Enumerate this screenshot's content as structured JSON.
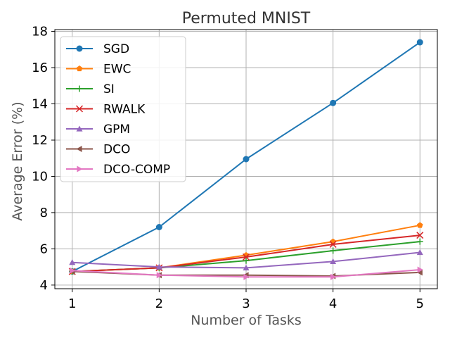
{
  "chart_data": {
    "type": "line",
    "title": "Permuted MNIST",
    "xlabel": "Number of Tasks",
    "ylabel": "Average Error (%)",
    "x": [
      1,
      2,
      3,
      4,
      5
    ],
    "xticks": [
      "1",
      "2",
      "3",
      "4",
      "5"
    ],
    "yticks": [
      "4",
      "6",
      "8",
      "10",
      "12",
      "14",
      "16",
      "18"
    ],
    "ylim": [
      3.8,
      18.1
    ],
    "xlim": [
      0.8,
      5.2
    ],
    "grid": true,
    "legend_position": "top-left",
    "series": [
      {
        "name": "SGD",
        "color": "#1f77b4",
        "marker": "circle",
        "values": [
          4.75,
          7.2,
          10.95,
          14.05,
          17.4
        ]
      },
      {
        "name": "EWC",
        "color": "#ff7f0e",
        "marker": "pentagon",
        "values": [
          4.75,
          4.95,
          5.65,
          6.4,
          7.3
        ]
      },
      {
        "name": "SI",
        "color": "#2ca02c",
        "marker": "plus",
        "values": [
          4.75,
          4.95,
          5.35,
          5.9,
          6.4
        ]
      },
      {
        "name": "RWALK",
        "color": "#d62728",
        "marker": "x",
        "values": [
          4.75,
          4.95,
          5.55,
          6.25,
          6.75
        ]
      },
      {
        "name": "GPM",
        "color": "#9467bd",
        "marker": "triangle-up",
        "values": [
          5.25,
          5.0,
          4.95,
          5.3,
          5.8
        ]
      },
      {
        "name": "DCO",
        "color": "#8c564b",
        "marker": "triangle-left",
        "values": [
          4.75,
          4.55,
          4.55,
          4.5,
          4.7
        ]
      },
      {
        "name": "DCO-COMP",
        "color": "#e377c2",
        "marker": "triangle-right",
        "values": [
          4.8,
          4.55,
          4.45,
          4.45,
          4.85
        ]
      }
    ]
  }
}
